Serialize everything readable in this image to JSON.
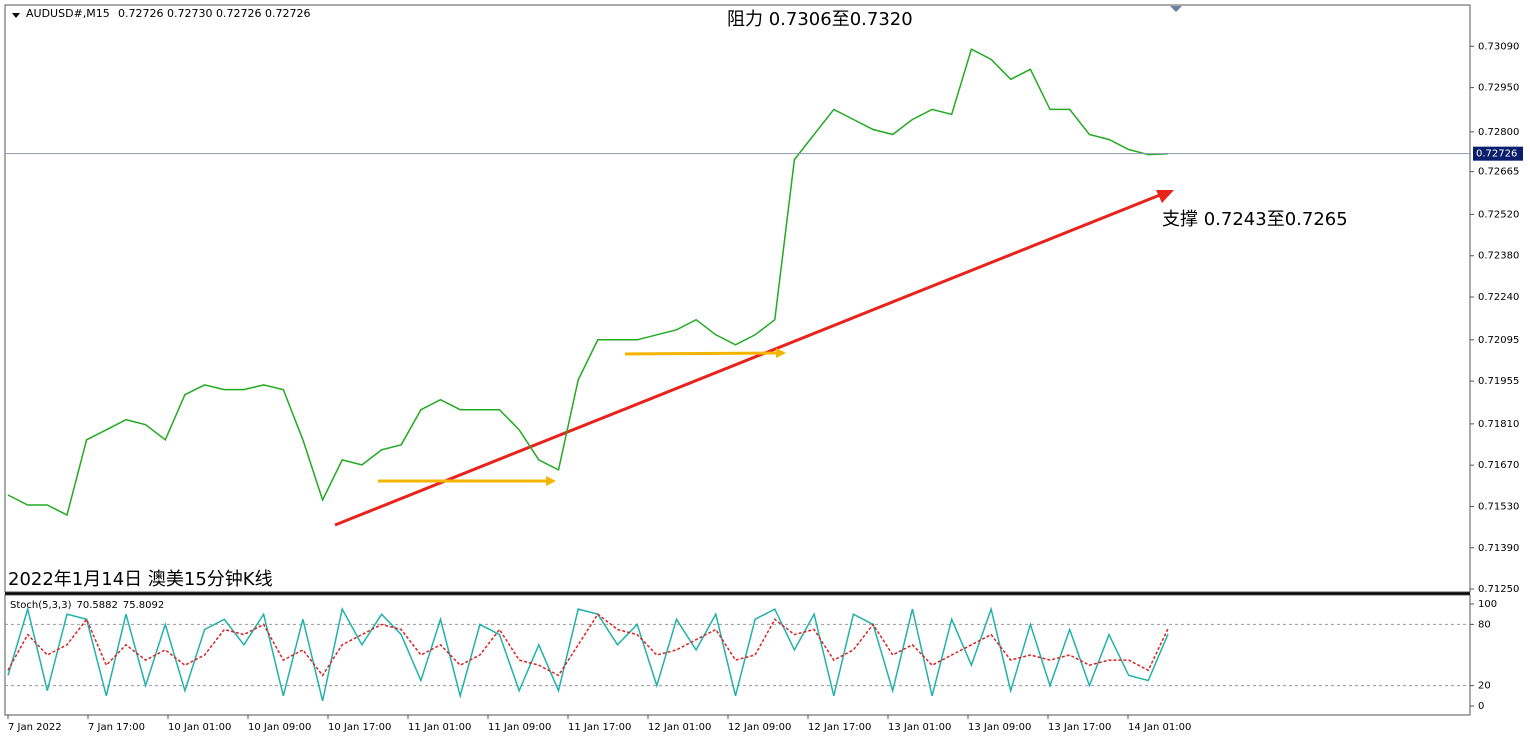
{
  "header": {
    "symbol": "AUDUSD#,M15",
    "quote": "0.72726 0.72730 0.72726 0.72726"
  },
  "annotations": {
    "resistance": "阻力 0.7306至0.7320",
    "support": "支撑 0.7243至0.7265",
    "caption": "2022年1月14日 澳美15分钟K线"
  },
  "time_axis": [
    "7 Jan 2022",
    "7 Jan 17:00",
    "10 Jan 01:00",
    "10 Jan 09:00",
    "10 Jan 17:00",
    "11 Jan 01:00",
    "11 Jan 09:00",
    "11 Jan 17:00",
    "12 Jan 01:00",
    "12 Jan 09:00",
    "12 Jan 17:00",
    "13 Jan 01:00",
    "13 Jan 09:00",
    "13 Jan 17:00",
    "14 Jan 01:00"
  ],
  "chart_data": [
    {
      "type": "line",
      "color": "#22aa22",
      "last": {
        "value": 0.72726,
        "label": "0.72726"
      },
      "values": [
        0.71569,
        0.71535,
        0.71535,
        0.71501,
        0.71756,
        0.7179,
        0.71824,
        0.71807,
        0.71756,
        0.71909,
        0.71942,
        0.71926,
        0.71926,
        0.71942,
        0.71926,
        0.71756,
        0.71552,
        0.71688,
        0.71671,
        0.71722,
        0.71739,
        0.71858,
        0.71892,
        0.71858,
        0.71858,
        0.71858,
        0.7179,
        0.71688,
        0.71654,
        0.71959,
        0.72095,
        0.72095,
        0.72095,
        0.72112,
        0.72129,
        0.72163,
        0.72112,
        0.72078,
        0.72112,
        0.72163,
        0.72706,
        0.72791,
        0.72876,
        0.72842,
        0.72808,
        0.72791,
        0.72842,
        0.72876,
        0.72859,
        0.7308,
        0.73046,
        0.72978,
        0.73012,
        0.72876,
        0.72876,
        0.72791,
        0.72774,
        0.7274,
        0.72723,
        0.72726
      ],
      "ylim": [
        0.7124,
        0.7323
      ],
      "yticks": [
        {
          "value": 0.7309,
          "label": "0.73090"
        },
        {
          "value": 0.7295,
          "label": "0.72950"
        },
        {
          "value": 0.728,
          "label": "0.72800"
        },
        {
          "value": 0.72665,
          "label": "0.72665"
        },
        {
          "value": 0.7252,
          "label": "0.72520"
        },
        {
          "value": 0.7238,
          "label": "0.72380"
        },
        {
          "value": 0.7224,
          "label": "0.72240"
        },
        {
          "value": 0.72095,
          "label": "0.72095"
        },
        {
          "value": 0.71955,
          "label": "0.71955"
        },
        {
          "value": 0.7181,
          "label": "0.71810"
        },
        {
          "value": 0.7167,
          "label": "0.71670"
        },
        {
          "value": 0.7153,
          "label": "0.71530"
        },
        {
          "value": 0.7139,
          "label": "0.71390"
        },
        {
          "value": 0.7125,
          "label": "0.71250"
        }
      ]
    },
    {
      "type": "line",
      "title": "Stoch(5,3,3)",
      "ylim": [
        -8.8,
        108.8
      ],
      "yticks": [
        0,
        20,
        80,
        100
      ],
      "series": [
        {
          "color": "#20b2aa",
          "values": [
            30,
            95,
            15,
            90,
            85,
            10,
            90,
            20,
            80,
            15,
            75,
            85,
            60,
            90,
            10,
            85,
            5,
            95,
            60,
            90,
            70,
            25,
            85,
            10,
            80,
            70,
            15,
            60,
            15,
            95,
            90,
            60,
            80,
            20,
            85,
            55,
            90,
            10,
            85,
            95,
            55,
            90,
            10,
            90,
            80,
            15,
            95,
            10,
            85,
            40,
            95,
            15,
            80,
            20,
            75,
            20,
            70,
            30,
            25,
            70.5882
          ]
        },
        {
          "color": "#dd2222",
          "values": [
            35,
            70,
            50,
            60,
            85,
            40,
            60,
            45,
            55,
            40,
            50,
            75,
            70,
            80,
            45,
            55,
            30,
            60,
            70,
            80,
            75,
            50,
            60,
            40,
            50,
            75,
            45,
            40,
            30,
            60,
            90,
            75,
            70,
            50,
            55,
            65,
            75,
            45,
            50,
            85,
            70,
            75,
            45,
            55,
            80,
            50,
            60,
            40,
            50,
            60,
            70,
            45,
            50,
            45,
            50,
            40,
            45,
            45,
            35,
            75.8092
          ]
        }
      ]
    }
  ]
}
